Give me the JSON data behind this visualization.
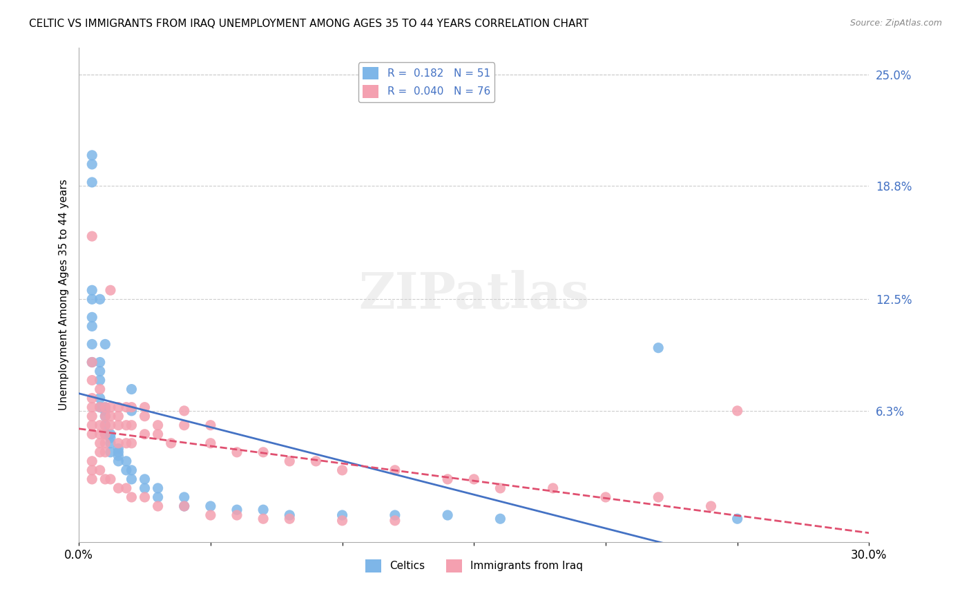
{
  "title": "CELTIC VS IMMIGRANTS FROM IRAQ UNEMPLOYMENT AMONG AGES 35 TO 44 YEARS CORRELATION CHART",
  "source": "Source: ZipAtlas.com",
  "xlabel": "",
  "ylabel": "Unemployment Among Ages 35 to 44 years",
  "xlim": [
    0,
    0.3
  ],
  "ylim": [
    -0.01,
    0.265
  ],
  "xticks": [
    0.0,
    0.05,
    0.1,
    0.15,
    0.2,
    0.25,
    0.3
  ],
  "xticklabels": [
    "0.0%",
    "",
    "",
    "",
    "",
    "",
    "30.0%"
  ],
  "right_yticks": [
    0.063,
    0.125,
    0.188,
    0.25
  ],
  "right_yticklabels": [
    "6.3%",
    "12.5%",
    "18.8%",
    "25.0%"
  ],
  "celtics_color": "#7EB6E8",
  "iraq_color": "#F4A0B0",
  "celtics_R": 0.182,
  "celtics_N": 51,
  "iraq_R": 0.04,
  "iraq_N": 76,
  "legend_R_color": "#4472C4",
  "background_color": "#FFFFFF",
  "grid_color": "#CCCCCC",
  "watermark": "ZIPatlas",
  "celtics_x": [
    0.005,
    0.005,
    0.005,
    0.005,
    0.005,
    0.005,
    0.005,
    0.008,
    0.008,
    0.008,
    0.008,
    0.008,
    0.01,
    0.01,
    0.01,
    0.01,
    0.01,
    0.012,
    0.012,
    0.012,
    0.012,
    0.015,
    0.015,
    0.015,
    0.015,
    0.018,
    0.018,
    0.02,
    0.02,
    0.02,
    0.025,
    0.025,
    0.03,
    0.03,
    0.04,
    0.04,
    0.05,
    0.06,
    0.07,
    0.08,
    0.1,
    0.12,
    0.14,
    0.16,
    0.25,
    0.005,
    0.005,
    0.008,
    0.01,
    0.02,
    0.22
  ],
  "celtics_y": [
    0.205,
    0.13,
    0.125,
    0.115,
    0.11,
    0.1,
    0.09,
    0.09,
    0.085,
    0.08,
    0.07,
    0.065,
    0.065,
    0.063,
    0.06,
    0.055,
    0.05,
    0.05,
    0.048,
    0.045,
    0.04,
    0.042,
    0.04,
    0.038,
    0.035,
    0.035,
    0.03,
    0.063,
    0.03,
    0.025,
    0.025,
    0.02,
    0.02,
    0.015,
    0.015,
    0.01,
    0.01,
    0.008,
    0.008,
    0.005,
    0.005,
    0.005,
    0.005,
    0.003,
    0.003,
    0.2,
    0.19,
    0.125,
    0.1,
    0.075,
    0.098
  ],
  "iraq_x": [
    0.005,
    0.005,
    0.005,
    0.005,
    0.005,
    0.005,
    0.005,
    0.005,
    0.008,
    0.008,
    0.008,
    0.008,
    0.008,
    0.008,
    0.01,
    0.01,
    0.01,
    0.01,
    0.01,
    0.01,
    0.012,
    0.012,
    0.012,
    0.012,
    0.015,
    0.015,
    0.015,
    0.015,
    0.018,
    0.018,
    0.018,
    0.02,
    0.02,
    0.02,
    0.025,
    0.025,
    0.025,
    0.03,
    0.03,
    0.035,
    0.04,
    0.04,
    0.05,
    0.05,
    0.06,
    0.07,
    0.08,
    0.09,
    0.1,
    0.12,
    0.14,
    0.15,
    0.16,
    0.18,
    0.2,
    0.22,
    0.24,
    0.005,
    0.005,
    0.005,
    0.008,
    0.01,
    0.012,
    0.015,
    0.018,
    0.02,
    0.025,
    0.03,
    0.04,
    0.05,
    0.06,
    0.07,
    0.08,
    0.1,
    0.12,
    0.25
  ],
  "iraq_y": [
    0.16,
    0.09,
    0.08,
    0.07,
    0.065,
    0.06,
    0.055,
    0.05,
    0.075,
    0.065,
    0.055,
    0.05,
    0.045,
    0.04,
    0.065,
    0.06,
    0.055,
    0.05,
    0.045,
    0.04,
    0.13,
    0.065,
    0.06,
    0.055,
    0.065,
    0.06,
    0.055,
    0.045,
    0.065,
    0.055,
    0.045,
    0.065,
    0.055,
    0.045,
    0.065,
    0.06,
    0.05,
    0.055,
    0.05,
    0.045,
    0.063,
    0.055,
    0.055,
    0.045,
    0.04,
    0.04,
    0.035,
    0.035,
    0.03,
    0.03,
    0.025,
    0.025,
    0.02,
    0.02,
    0.015,
    0.015,
    0.01,
    0.035,
    0.03,
    0.025,
    0.03,
    0.025,
    0.025,
    0.02,
    0.02,
    0.015,
    0.015,
    0.01,
    0.01,
    0.005,
    0.005,
    0.003,
    0.003,
    0.002,
    0.002,
    0.063
  ]
}
